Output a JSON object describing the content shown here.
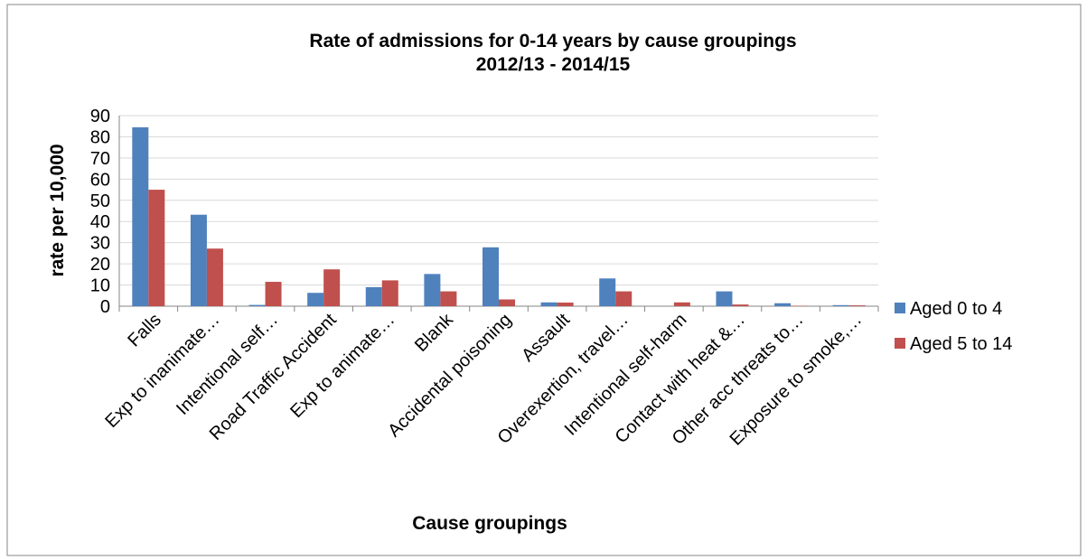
{
  "chart_data": {
    "type": "bar",
    "title": "Rate of admissions for 0-14 years by cause groupings",
    "subtitle": "2012/13 - 2014/15",
    "xlabel": "Cause groupings",
    "ylabel": "rate per 10,000",
    "ylim": [
      0,
      90
    ],
    "yticks": [
      0,
      10,
      20,
      30,
      40,
      50,
      60,
      70,
      80,
      90
    ],
    "grid": true,
    "legend_position": "right",
    "categories": [
      "Falls",
      "Exp to inanimate…",
      "Intentional self…",
      "Road Traffic Accident",
      "Exp to animate…",
      "Blank",
      "Accidental poisoning",
      "Assault",
      "Overexertion, travel…",
      "Intentional self-harm",
      "Contact with heat &…",
      "Other acc threats to…",
      "Exposure to smoke,…"
    ],
    "series": [
      {
        "name": "Aged 0 to 4",
        "color": "#4F81BD",
        "values": [
          84.5,
          43.2,
          0.6,
          6.3,
          9.0,
          15.2,
          27.8,
          1.8,
          13.1,
          0.0,
          7.0,
          1.4,
          0.5
        ]
      },
      {
        "name": "Aged 5 to 14",
        "color": "#C0504D",
        "values": [
          55.0,
          27.2,
          11.5,
          17.4,
          12.2,
          7.0,
          3.2,
          1.7,
          7.0,
          1.8,
          0.8,
          0.2,
          0.4
        ]
      }
    ]
  }
}
